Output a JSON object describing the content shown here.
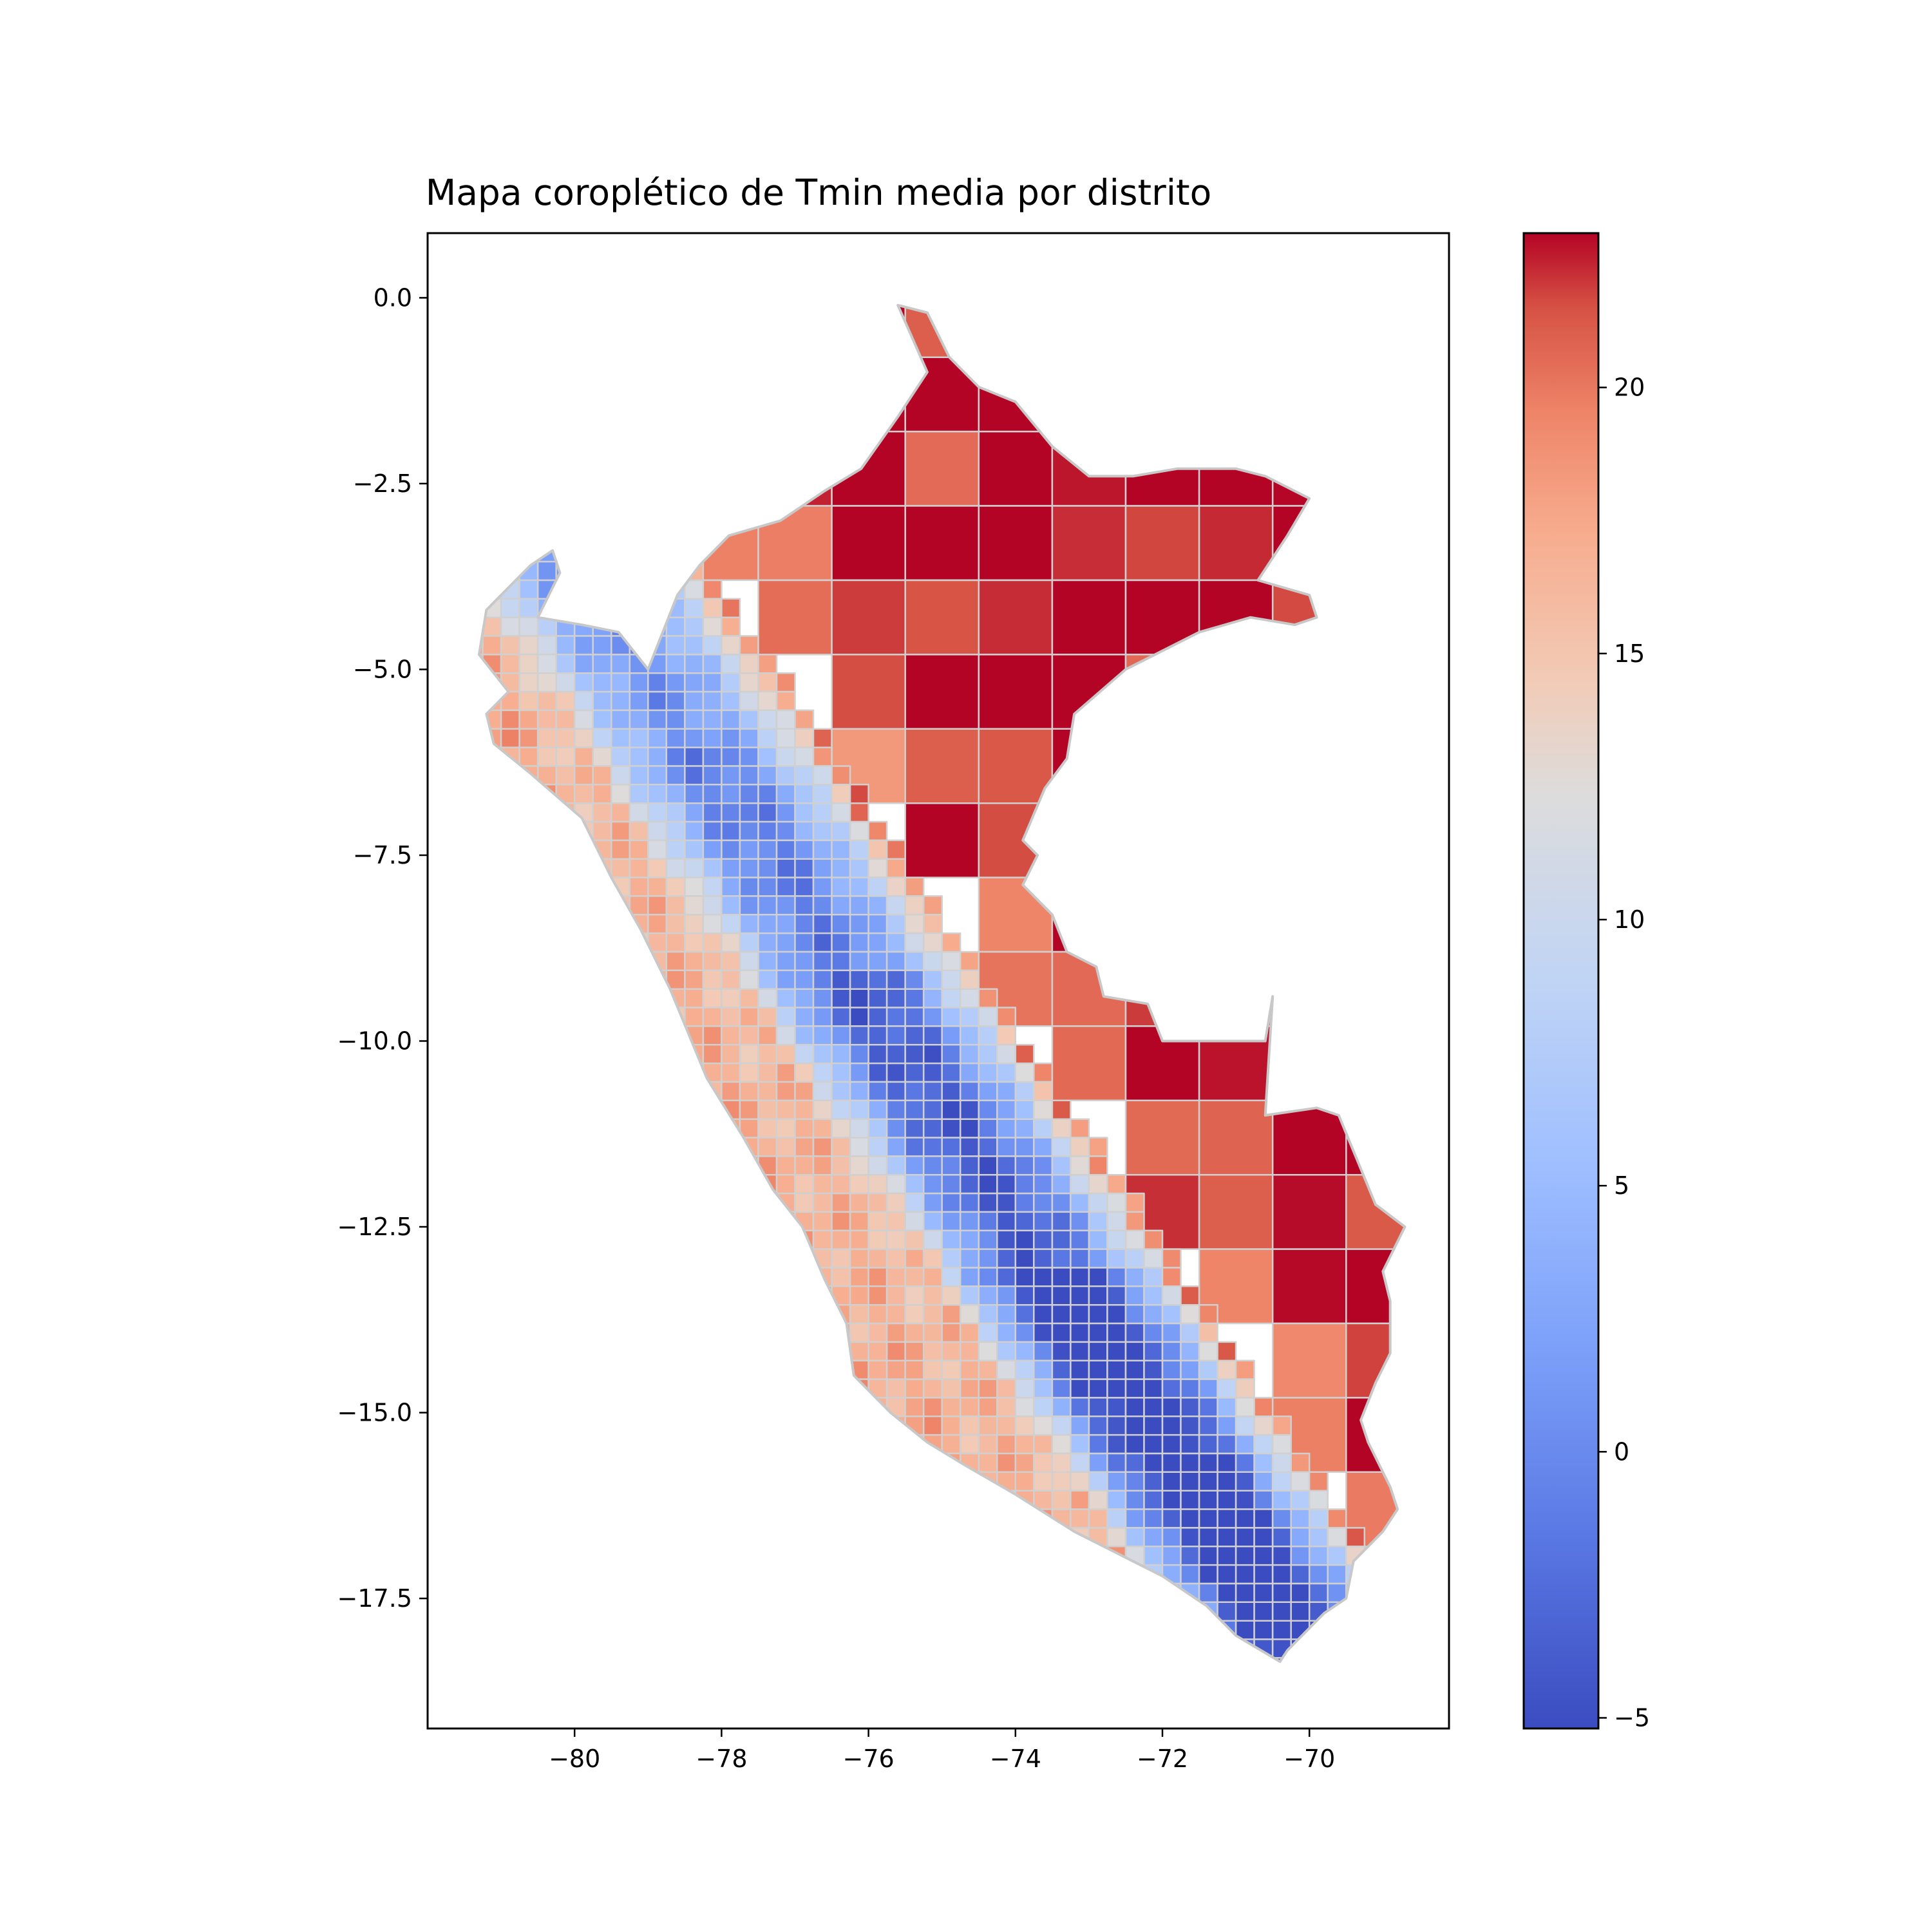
{
  "title": "Mapa coroplético de Tmin media por distrito",
  "map": {
    "x_ticks": [
      {
        "value": -80,
        "label": "−80"
      },
      {
        "value": -78,
        "label": "−78"
      },
      {
        "value": -76,
        "label": "−76"
      },
      {
        "value": -74,
        "label": "−74"
      },
      {
        "value": -72,
        "label": "−72"
      },
      {
        "value": -70,
        "label": "−70"
      }
    ],
    "y_ticks": [
      {
        "value": 0.0,
        "label": "0.0"
      },
      {
        "value": -2.5,
        "label": "−2.5"
      },
      {
        "value": -5.0,
        "label": "−5.0"
      },
      {
        "value": -7.5,
        "label": "−7.5"
      },
      {
        "value": -10.0,
        "label": "−10.0"
      },
      {
        "value": -12.5,
        "label": "−12.5"
      },
      {
        "value": -15.0,
        "label": "−15.0"
      },
      {
        "value": -17.5,
        "label": "−17.5"
      }
    ],
    "xlim": [
      -82,
      -68.1
    ],
    "ylim": [
      -19.25,
      0.87
    ],
    "edge_color": "#d0d0d0",
    "colormap": "coolwarm"
  },
  "colorbar": {
    "min": -5.2,
    "max": 22.9,
    "ticks": [
      {
        "value": -5,
        "label": "−5"
      },
      {
        "value": 0,
        "label": "0"
      },
      {
        "value": 5,
        "label": "5"
      },
      {
        "value": 10,
        "label": "10"
      },
      {
        "value": 15,
        "label": "15"
      },
      {
        "value": 20,
        "label": "20"
      }
    ],
    "colors": {
      "min": "#3b4cc0",
      "mid": "#dddcdc",
      "max": "#b40426"
    }
  }
}
